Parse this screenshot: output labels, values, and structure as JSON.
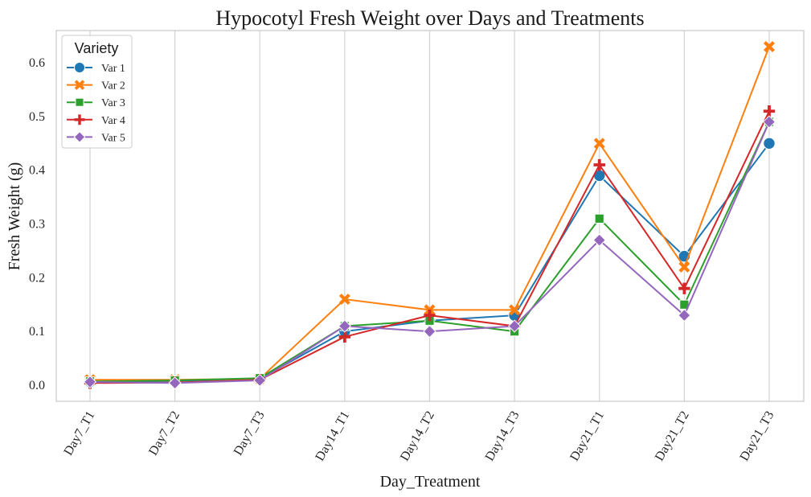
{
  "chart_data": {
    "type": "line",
    "title": "Hypocotyl Fresh Weight over Days and Treatments",
    "xlabel": "Day_Treatment",
    "ylabel": "Fresh Weight (g)",
    "categories": [
      "Day7_T1",
      "Day7_T2",
      "Day7_T3",
      "Day14_T1",
      "Day14_T2",
      "Day14_T3",
      "Day21_T1",
      "Day21_T2",
      "Day21_T3"
    ],
    "ylim": [
      -0.03,
      0.66
    ],
    "yticks": [
      0.0,
      0.1,
      0.2,
      0.3,
      0.4,
      0.5,
      0.6
    ],
    "grid": "vertical",
    "legend": {
      "title": "Variety",
      "placement": "top-left"
    },
    "series": [
      {
        "name": "Var 1",
        "color": "#1f77b4",
        "marker": "circle",
        "values": [
          0.006,
          0.008,
          0.012,
          0.1,
          0.12,
          0.13,
          0.39,
          0.24,
          0.45
        ]
      },
      {
        "name": "Var 2",
        "color": "#ff7f0e",
        "marker": "x",
        "values": [
          0.01,
          0.01,
          0.012,
          0.16,
          0.14,
          0.14,
          0.45,
          0.22,
          0.63
        ]
      },
      {
        "name": "Var 3",
        "color": "#2ca02c",
        "marker": "square",
        "values": [
          0.007,
          0.009,
          0.013,
          0.11,
          0.12,
          0.1,
          0.31,
          0.15,
          0.49
        ]
      },
      {
        "name": "Var 4",
        "color": "#d62728",
        "marker": "plus",
        "values": [
          0.004,
          0.005,
          0.01,
          0.09,
          0.13,
          0.11,
          0.41,
          0.18,
          0.51
        ]
      },
      {
        "name": "Var 5",
        "color": "#9467bd",
        "marker": "diamond",
        "values": [
          0.006,
          0.004,
          0.009,
          0.11,
          0.1,
          0.11,
          0.27,
          0.13,
          0.49
        ]
      }
    ]
  }
}
